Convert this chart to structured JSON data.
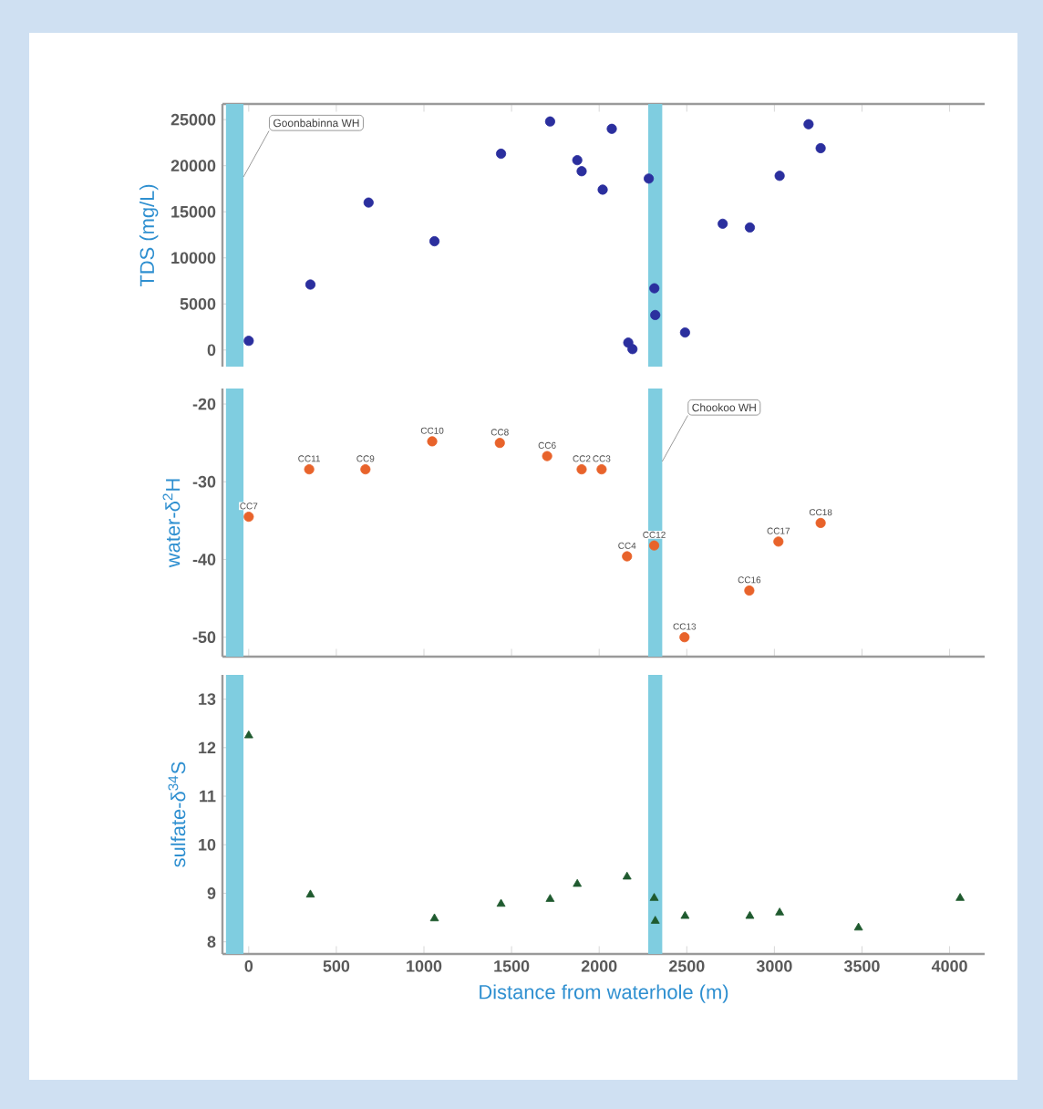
{
  "chart_data": [
    {
      "type": "scatter",
      "ylabel": "TDS (mg/L)",
      "color": "#2b2f9e",
      "marker": "circle",
      "xlim": [
        -150,
        4200
      ],
      "ylim": [
        -1800,
        26700
      ],
      "yticks": [
        0,
        5000,
        10000,
        15000,
        20000,
        25000
      ],
      "tick_labels": "y",
      "x": [
        0,
        352,
        684,
        1060,
        1440,
        1720,
        1875,
        1900,
        2020,
        2072,
        2166,
        2190,
        2283,
        2315,
        2320,
        2490,
        2705,
        2860,
        3030,
        3195,
        3264
      ],
      "values": [
        1000,
        7100,
        16000,
        11800,
        21300,
        24800,
        20600,
        19400,
        17400,
        24000,
        800,
        100,
        18600,
        6700,
        3800,
        1900,
        13700,
        13300,
        18900,
        24500,
        21900
      ],
      "bands": [
        {
          "axis": "x",
          "from": -130,
          "to": -30,
          "color": "#7fcde0",
          "label": "Goonbabinna WH"
        },
        {
          "axis": "x",
          "from": 2280,
          "to": 2360,
          "color": "#7fcde0"
        }
      ]
    },
    {
      "type": "scatter",
      "ylabel": "water-δ$^{2}$H",
      "color": "#e8632b",
      "marker": "circle",
      "xlim": [
        -150,
        4200
      ],
      "xticks": [
        0,
        500,
        1000,
        1500,
        2000,
        2500,
        3000,
        3500,
        4000
      ],
      "ylim": [
        -52.5,
        -18
      ],
      "yticks": [
        -20,
        -30,
        -40,
        -50
      ],
      "tick_labels": "y",
      "x": [
        0,
        345,
        666,
        1047,
        1433,
        1703,
        1900,
        2014,
        2159,
        2314,
        2487,
        2857,
        3023,
        3264
      ],
      "values": [
        -34.5,
        -28.4,
        -28.4,
        -24.8,
        -25.0,
        -26.7,
        -28.4,
        -28.4,
        -39.6,
        -38.2,
        -50.0,
        -44.0,
        -37.7,
        -35.3
      ],
      "annotations": [
        {
          "text": "CC7",
          "x": 0,
          "y": -34.5
        },
        {
          "text": "CC11",
          "x": 345,
          "y": -28.4
        },
        {
          "text": "CC9",
          "x": 666,
          "y": -28.4
        },
        {
          "text": "CC10",
          "x": 1047,
          "y": -24.8
        },
        {
          "text": "CC8",
          "x": 1433,
          "y": -25.0
        },
        {
          "text": "CC6",
          "x": 1703,
          "y": -26.7
        },
        {
          "text": "CC2",
          "x": 1900,
          "y": -28.4
        },
        {
          "text": "CC3",
          "x": 2014,
          "y": -28.4
        },
        {
          "text": "CC4",
          "x": 2159,
          "y": -39.6
        },
        {
          "text": "CC12",
          "x": 2314,
          "y": -38.2
        },
        {
          "text": "CC13",
          "x": 2487,
          "y": -50.0
        },
        {
          "text": "CC16",
          "x": 2857,
          "y": -44.0
        },
        {
          "text": "CC17",
          "x": 3023,
          "y": -37.7
        },
        {
          "text": "CC18",
          "x": 3264,
          "y": -35.3
        }
      ],
      "bands": [
        {
          "axis": "x",
          "from": -130,
          "to": -30,
          "color": "#7fcde0"
        },
        {
          "axis": "x",
          "from": 2280,
          "to": 2360,
          "color": "#7fcde0",
          "label": "Chookoo WH"
        }
      ]
    },
    {
      "type": "scatter",
      "xlabel": "Distance from waterhole (m)",
      "ylabel": "sulfate-δ$^{34}$S",
      "color": "#1f5a2f",
      "marker": "triangle",
      "xlim": [
        -150,
        4200
      ],
      "ylim": [
        7.75,
        13.5
      ],
      "xticks": [
        0,
        500,
        1000,
        1500,
        2000,
        2500,
        3000,
        3500,
        4000
      ],
      "yticks": [
        8,
        9,
        10,
        11,
        12,
        13
      ],
      "x": [
        0,
        352,
        1060,
        1440,
        1720,
        1875,
        2159,
        2314,
        2320,
        2490,
        2860,
        3030,
        3480,
        4060
      ],
      "values": [
        12.25,
        8.97,
        8.48,
        8.78,
        8.88,
        9.19,
        9.34,
        8.9,
        8.43,
        8.53,
        8.53,
        8.6,
        8.29,
        8.9
      ],
      "bands": [
        {
          "axis": "x",
          "from": -130,
          "to": -30,
          "color": "#7fcde0"
        },
        {
          "axis": "x",
          "from": 2280,
          "to": 2360,
          "color": "#7fcde0"
        }
      ]
    }
  ]
}
